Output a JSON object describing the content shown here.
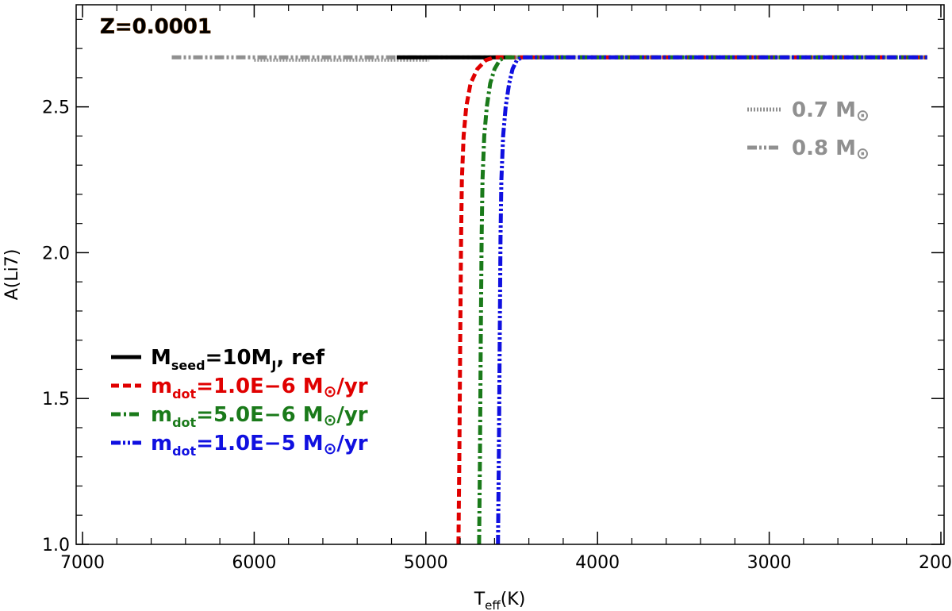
{
  "chart_data": {
    "type": "line",
    "xlabel": {
      "main": "T",
      "sub": "eff",
      "unit": "(K)"
    },
    "ylabel": "A(Li7)",
    "xlim": [
      7000,
      2000
    ],
    "ylim": [
      1.0,
      2.85
    ],
    "xticks": [
      7000,
      6000,
      5000,
      4000,
      3000,
      2000
    ],
    "xtick_labels": [
      "7000",
      "6000",
      "5000",
      "4000",
      "3000",
      "2000"
    ],
    "yticks": [
      1.0,
      1.5,
      2.0,
      2.5
    ],
    "ytick_labels": [
      "1.0",
      "1.5",
      "2.0",
      "2.5"
    ],
    "annotation": {
      "text": "Z=0.0001",
      "color": "#c06010"
    },
    "legend_bottom": [
      {
        "label_main": "M",
        "label_sub": "seed",
        "label_rest": "=10M",
        "label_sub2": "J",
        "label_end": ", ref",
        "color": "#000000",
        "dash": "solid"
      },
      {
        "label_main": "m",
        "label_sub": "dot",
        "label_rest": "=1.0E−6 M",
        "label_sub2": "",
        "label_end": "/yr",
        "color": "#e00000",
        "dash": "dashed"
      },
      {
        "label_main": "m",
        "label_sub": "dot",
        "label_rest": "=5.0E−6 M",
        "label_sub2": "",
        "label_end": "/yr",
        "color": "#1a7a1a",
        "dash": "dashdot"
      },
      {
        "label_main": "m",
        "label_sub": "dot",
        "label_rest": "=1.0E−5 M",
        "label_sub2": "",
        "label_end": "/yr",
        "color": "#1010e0",
        "dash": "dashdotdot"
      }
    ],
    "legend_top_right": [
      {
        "label": "0.7 M",
        "color": "#909090",
        "dash": "dotted"
      },
      {
        "label": "0.8 M",
        "color": "#909090",
        "dash": "dashdotdot"
      }
    ],
    "sun_symbol": "⊙",
    "series": [
      {
        "name": "0.7 Msun",
        "color": "#909090",
        "dash": "dotted",
        "x": [
          6000,
          4980
        ],
        "y": [
          2.66,
          2.66
        ]
      },
      {
        "name": "0.8 Msun",
        "color": "#909090",
        "dash": "dashdotdot",
        "x": [
          6480,
          2080
        ],
        "y": [
          2.67,
          2.67
        ]
      },
      {
        "name": "Mseed=10MJ, ref",
        "color": "#000000",
        "dash": "solid",
        "x": [
          5170,
          4500
        ],
        "y": [
          2.67,
          2.67
        ]
      },
      {
        "name": "mdot=1.0E-6",
        "color": "#e00000",
        "dash": "dashed",
        "x": [
          4810,
          4805,
          4800,
          4795,
          4790,
          4780,
          4765,
          4740,
          4700,
          4650,
          4600,
          4550,
          2080
        ],
        "y": [
          1.0,
          1.3,
          1.7,
          2.05,
          2.25,
          2.4,
          2.5,
          2.58,
          2.63,
          2.66,
          2.67,
          2.67,
          2.67
        ]
      },
      {
        "name": "mdot=5.0E-6",
        "color": "#1a7a1a",
        "dash": "dashdot",
        "x": [
          4690,
          4685,
          4680,
          4675,
          4670,
          4660,
          4645,
          4625,
          4600,
          4570,
          4540,
          4500,
          2080
        ],
        "y": [
          1.0,
          1.3,
          1.7,
          2.05,
          2.25,
          2.4,
          2.5,
          2.58,
          2.63,
          2.66,
          2.67,
          2.67,
          2.67
        ]
      },
      {
        "name": "mdot=1.0E-5",
        "color": "#1010e0",
        "dash": "dashdotdot",
        "x": [
          4580,
          4575,
          4570,
          4565,
          4560,
          4550,
          4535,
          4515,
          4495,
          4470,
          4440,
          4400,
          2080
        ],
        "y": [
          1.0,
          1.3,
          1.7,
          2.05,
          2.25,
          2.4,
          2.5,
          2.58,
          2.63,
          2.66,
          2.67,
          2.67,
          2.67
        ]
      }
    ]
  }
}
